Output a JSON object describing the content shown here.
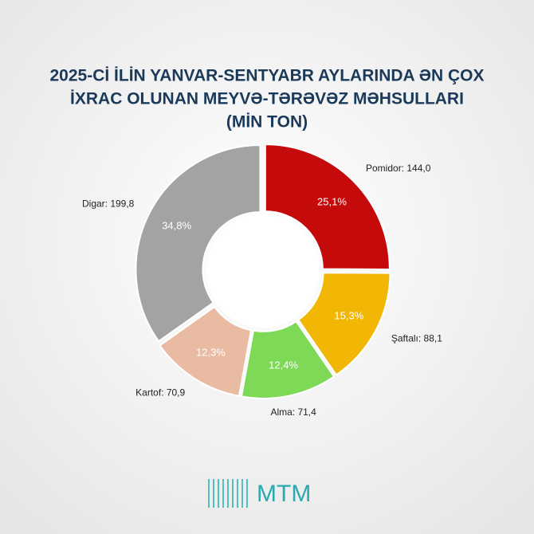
{
  "chart_data": {
    "type": "pie",
    "title": [
      "2025-Cİ İLİN YANVAR-SENTYABR AYLARINDA ƏN ÇOX",
      "İXRAC OLUNAN MEYVƏ-TƏRƏVƏZ MƏHSULLARI",
      "(MİN TON)"
    ],
    "values": [
      144.0,
      88.1,
      71.4,
      70.9,
      199.8
    ],
    "value_labels": [
      "Pomidor: 144,0",
      "Şaftalı: 88,1",
      "Alma: 71,4",
      "Kartof: 70,9",
      "Digar: 199,8"
    ],
    "percentages": [
      25.1,
      15.3,
      12.4,
      12.3,
      34.8
    ],
    "percentage_labels": [
      "25,1%",
      "15,3%",
      "12,4%",
      "12,3%",
      "34,8%"
    ],
    "colors": [
      "#c40a0a",
      "#f2b705",
      "#7ed957",
      "#e9bba3",
      "#a3a3a3"
    ],
    "hole": true
  },
  "logo": "MTM"
}
